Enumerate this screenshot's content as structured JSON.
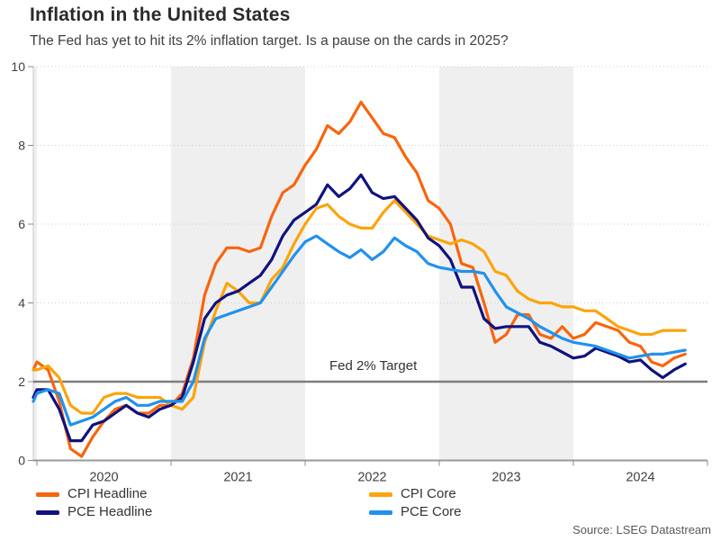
{
  "header": {
    "title": "Inflation in the United States",
    "subtitle": "The Fed has yet to hit its 2% inflation target. Is a pause on the cards in 2025?"
  },
  "source": "Source: LSEG Datastream",
  "chart_data": {
    "type": "line",
    "title": "Inflation in the United States",
    "xlabel": "",
    "ylabel": "",
    "ylim": [
      0,
      10
    ],
    "yticks": [
      0,
      2,
      4,
      6,
      8,
      10
    ],
    "xticks_years": [
      "2020",
      "2021",
      "2022",
      "2023",
      "2024"
    ],
    "shaded_years": [
      2019,
      2021,
      2023
    ],
    "grid": "dotted-horizontal",
    "legend_position": "bottom",
    "target_line": {
      "value": 2,
      "label": "Fed 2% Target",
      "color": "#7d7d7d"
    },
    "x_months": [
      "2019-12",
      "2020-01",
      "2020-02",
      "2020-03",
      "2020-04",
      "2020-05",
      "2020-06",
      "2020-07",
      "2020-08",
      "2020-09",
      "2020-10",
      "2020-11",
      "2020-12",
      "2021-01",
      "2021-02",
      "2021-03",
      "2021-04",
      "2021-05",
      "2021-06",
      "2021-07",
      "2021-08",
      "2021-09",
      "2021-10",
      "2021-11",
      "2021-12",
      "2022-01",
      "2022-02",
      "2022-03",
      "2022-04",
      "2022-05",
      "2022-06",
      "2022-07",
      "2022-08",
      "2022-09",
      "2022-10",
      "2022-11",
      "2022-12",
      "2023-01",
      "2023-02",
      "2023-03",
      "2023-04",
      "2023-05",
      "2023-06",
      "2023-07",
      "2023-08",
      "2023-09",
      "2023-10",
      "2023-11",
      "2023-12",
      "2024-01",
      "2024-02",
      "2024-03",
      "2024-04",
      "2024-05",
      "2024-06",
      "2024-07",
      "2024-08",
      "2024-09",
      "2024-10",
      "2024-11"
    ],
    "series": [
      {
        "name": "CPI Headline",
        "color": "#f8650d",
        "values": [
          2.3,
          2.5,
          2.3,
          1.5,
          0.3,
          0.1,
          0.6,
          1.0,
          1.3,
          1.4,
          1.2,
          1.2,
          1.4,
          1.4,
          1.7,
          2.6,
          4.2,
          5.0,
          5.4,
          5.4,
          5.3,
          5.4,
          6.2,
          6.8,
          7.0,
          7.5,
          7.9,
          8.5,
          8.3,
          8.6,
          9.1,
          8.7,
          8.3,
          8.2,
          7.7,
          7.3,
          6.6,
          6.4,
          6.0,
          5.0,
          4.9,
          4.0,
          3.0,
          3.2,
          3.7,
          3.7,
          3.2,
          3.1,
          3.4,
          3.1,
          3.2,
          3.5,
          3.4,
          3.3,
          3.0,
          2.9,
          2.5,
          2.4,
          2.6,
          2.7
        ]
      },
      {
        "name": "CPI Core",
        "color": "#fba40d",
        "values": [
          2.3,
          2.3,
          2.4,
          2.1,
          1.4,
          1.2,
          1.2,
          1.6,
          1.7,
          1.7,
          1.6,
          1.6,
          1.6,
          1.4,
          1.3,
          1.6,
          3.0,
          3.8,
          4.5,
          4.3,
          4.0,
          4.0,
          4.6,
          4.9,
          5.5,
          6.0,
          6.4,
          6.5,
          6.2,
          6.0,
          5.9,
          5.9,
          6.3,
          6.6,
          6.3,
          6.0,
          5.7,
          5.6,
          5.5,
          5.6,
          5.5,
          5.3,
          4.8,
          4.7,
          4.3,
          4.1,
          4.0,
          4.0,
          3.9,
          3.9,
          3.8,
          3.8,
          3.6,
          3.4,
          3.3,
          3.2,
          3.2,
          3.3,
          3.3,
          3.3
        ]
      },
      {
        "name": "PCE Headline",
        "color": "#10127e",
        "values": [
          1.6,
          1.8,
          1.8,
          1.3,
          0.5,
          0.5,
          0.9,
          1.0,
          1.2,
          1.4,
          1.2,
          1.1,
          1.3,
          1.4,
          1.6,
          2.5,
          3.6,
          4.0,
          4.2,
          4.3,
          4.5,
          4.7,
          5.1,
          5.7,
          6.1,
          6.3,
          6.5,
          7.0,
          6.7,
          6.9,
          7.25,
          6.8,
          6.65,
          6.7,
          6.4,
          6.1,
          5.65,
          5.45,
          5.1,
          4.4,
          4.4,
          3.6,
          3.35,
          3.4,
          3.4,
          3.4,
          3.0,
          2.9,
          2.75,
          2.6,
          2.65,
          2.85,
          2.75,
          2.65,
          2.5,
          2.55,
          2.3,
          2.1,
          2.3,
          2.45
        ]
      },
      {
        "name": "PCE Core",
        "color": "#2191ee",
        "values": [
          1.5,
          1.7,
          1.8,
          1.7,
          0.9,
          1.0,
          1.1,
          1.3,
          1.5,
          1.6,
          1.4,
          1.4,
          1.5,
          1.5,
          1.5,
          2.0,
          3.1,
          3.6,
          3.7,
          3.8,
          3.9,
          4.0,
          4.4,
          4.8,
          5.2,
          5.55,
          5.7,
          5.5,
          5.3,
          5.15,
          5.35,
          5.1,
          5.3,
          5.65,
          5.45,
          5.3,
          5.0,
          4.9,
          4.85,
          4.8,
          4.8,
          4.75,
          4.3,
          3.9,
          3.75,
          3.6,
          3.4,
          3.25,
          3.1,
          3.0,
          2.95,
          2.9,
          2.8,
          2.7,
          2.6,
          2.65,
          2.7,
          2.7,
          2.75,
          2.8
        ]
      }
    ]
  }
}
